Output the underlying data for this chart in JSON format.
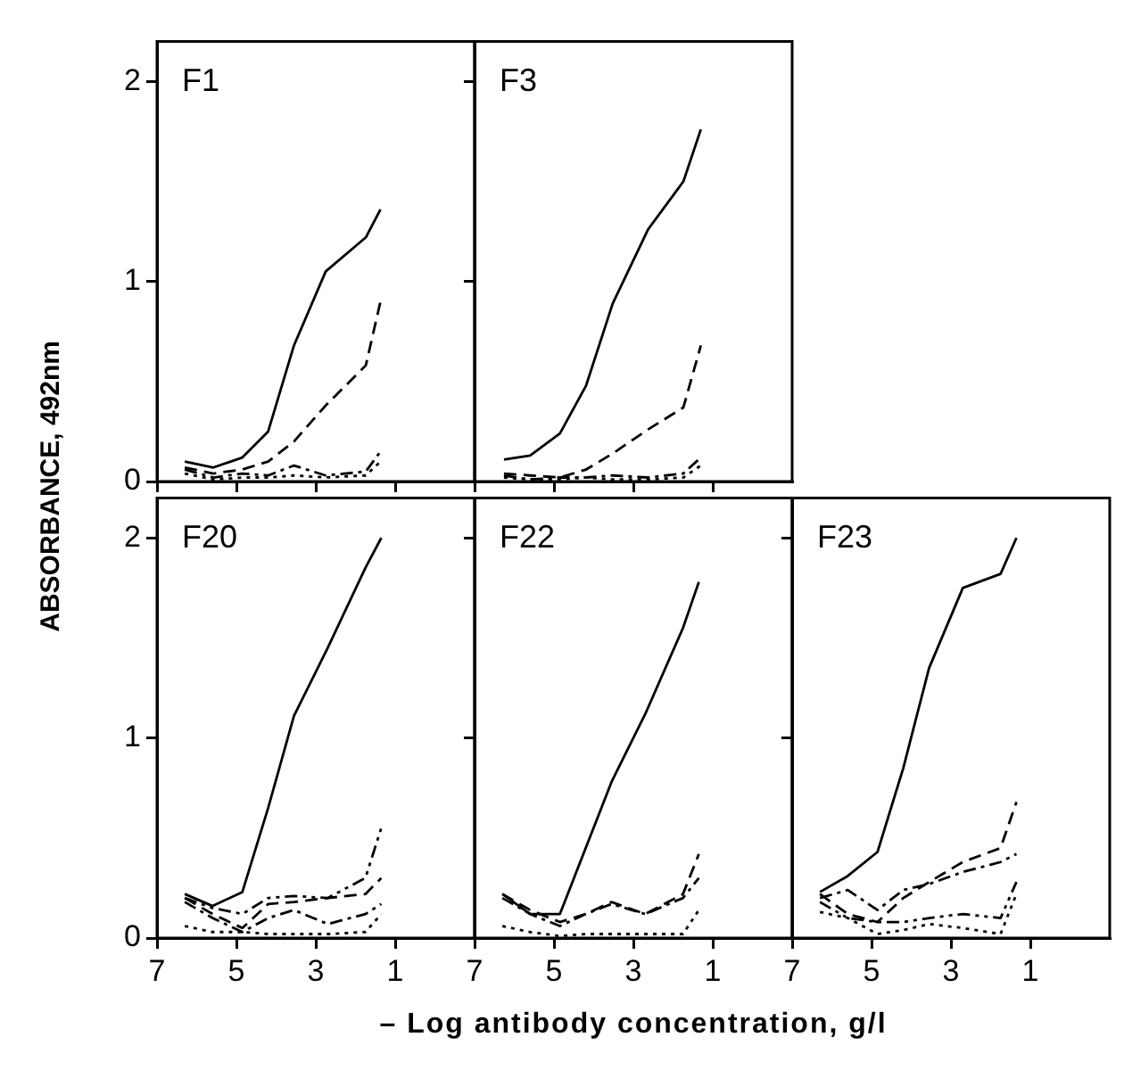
{
  "chart_data": [
    {
      "type": "line",
      "title": "F1",
      "ylabel": "ABSORBANCE, 492nm",
      "xlim": [
        7,
        -1
      ],
      "ylim": [
        0,
        2.2
      ],
      "xticks": [
        {
          "value": 7,
          "label": null
        },
        {
          "value": 5,
          "label": null
        },
        {
          "value": 3,
          "label": null
        },
        {
          "value": 1,
          "label": null
        }
      ],
      "yticks": [
        0,
        1,
        2
      ],
      "tick_labels": "y",
      "marker": "none",
      "x": [
        6.3,
        5.58,
        4.85,
        4.2,
        3.55,
        2.75,
        1.74,
        1.37
      ],
      "series": [
        {
          "color": "#000000",
          "line_style": "solid",
          "values": [
            0.1,
            0.07,
            0.12,
            0.25,
            0.68,
            1.05,
            1.22,
            1.36
          ]
        },
        {
          "color": "#000000",
          "line_style": "dashed",
          "values": [
            0.07,
            0.04,
            0.06,
            0.1,
            0.2,
            0.38,
            0.58,
            0.9
          ]
        },
        {
          "color": "#000000",
          "line_style": "dashdot",
          "values": [
            0.06,
            0.02,
            0.04,
            0.03,
            0.08,
            0.03,
            0.05,
            0.15
          ]
        },
        {
          "color": "#000000",
          "line_style": "dotted",
          "values": [
            0.04,
            0.01,
            0.02,
            0.02,
            0.03,
            0.02,
            0.03,
            0.1
          ]
        }
      ]
    },
    {
      "type": "line",
      "title": "F3",
      "xlim": [
        7,
        -1
      ],
      "ylim": [
        0,
        2.2
      ],
      "xticks": [
        {
          "value": 7,
          "label": null
        },
        {
          "value": 5,
          "label": null
        },
        {
          "value": 3,
          "label": null
        },
        {
          "value": 1,
          "label": null
        }
      ],
      "yticks": [
        {
          "value": 0,
          "label": null
        },
        {
          "value": 1,
          "label": null
        },
        {
          "value": 2,
          "label": null
        }
      ],
      "tick_labels": false,
      "marker": "none",
      "x": [
        6.26,
        5.6,
        4.85,
        4.19,
        3.52,
        2.63,
        1.74,
        1.3
      ],
      "series": [
        {
          "color": "#000000",
          "line_style": "solid",
          "values": [
            0.11,
            0.13,
            0.24,
            0.48,
            0.89,
            1.26,
            1.5,
            1.76
          ]
        },
        {
          "color": "#000000",
          "line_style": "dashed",
          "values": [
            0.04,
            0.03,
            0.02,
            0.06,
            0.14,
            0.26,
            0.37,
            0.68
          ]
        },
        {
          "color": "#000000",
          "line_style": "dashdot",
          "values": [
            0.03,
            0.01,
            0.02,
            0.02,
            0.03,
            0.02,
            0.04,
            0.12
          ]
        },
        {
          "color": "#000000",
          "line_style": "dotted",
          "values": [
            0.02,
            0.01,
            0.01,
            0.02,
            0.01,
            0.01,
            0.02,
            0.08
          ]
        }
      ]
    },
    {
      "type": "line",
      "title": "F20",
      "xlim": [
        7,
        -1
      ],
      "ylim": [
        0,
        2.2
      ],
      "xticks": [
        7,
        5,
        3,
        1
      ],
      "yticks": [
        0,
        1,
        2
      ],
      "marker": "none",
      "x": [
        6.3,
        5.6,
        4.85,
        4.2,
        3.55,
        2.7,
        1.75,
        1.35
      ],
      "series": [
        {
          "color": "#000000",
          "line_style": "solid",
          "values": [
            0.22,
            0.16,
            0.23,
            0.65,
            1.11,
            1.45,
            1.85,
            2.0
          ]
        },
        {
          "color": "#000000",
          "line_style": "dashed",
          "values": [
            0.2,
            0.12,
            0.05,
            0.17,
            0.18,
            0.2,
            0.22,
            0.3
          ]
        },
        {
          "color": "#000000",
          "line_style": "dashdot",
          "values": [
            0.18,
            0.1,
            0.03,
            0.1,
            0.14,
            0.07,
            0.12,
            0.17
          ]
        },
        {
          "color": "#000000",
          "line_style": "dashdotdot",
          "values": [
            0.2,
            0.15,
            0.12,
            0.2,
            0.21,
            0.2,
            0.3,
            0.55
          ]
        },
        {
          "color": "#000000",
          "line_style": "dotted",
          "values": [
            0.06,
            0.03,
            0.03,
            0.02,
            0.02,
            0.02,
            0.03,
            0.12
          ]
        }
      ]
    },
    {
      "type": "line",
      "title": "F22",
      "xlabel": "– Log antibody concentration, g/l",
      "xlim": [
        7,
        -1
      ],
      "ylim": [
        0,
        2.2
      ],
      "xticks": [
        7,
        5,
        3,
        1
      ],
      "yticks": [
        {
          "value": 0,
          "label": null
        },
        {
          "value": 1,
          "label": null
        },
        {
          "value": 2,
          "label": null
        }
      ],
      "tick_labels": "x",
      "marker": "none",
      "x": [
        6.3,
        5.6,
        4.85,
        4.2,
        3.55,
        2.7,
        1.75,
        1.35
      ],
      "series": [
        {
          "color": "#000000",
          "line_style": "solid",
          "values": [
            0.22,
            0.12,
            0.12,
            0.45,
            0.78,
            1.12,
            1.55,
            1.78
          ]
        },
        {
          "color": "#000000",
          "line_style": "dashed",
          "values": [
            0.22,
            0.14,
            0.08,
            0.12,
            0.18,
            0.12,
            0.22,
            0.42
          ]
        },
        {
          "color": "#000000",
          "line_style": "dashdot",
          "values": [
            0.2,
            0.12,
            0.06,
            0.12,
            0.17,
            0.12,
            0.2,
            0.3
          ]
        },
        {
          "color": "#000000",
          "line_style": "dotted",
          "values": [
            0.06,
            0.03,
            0.01,
            0.02,
            0.02,
            0.02,
            0.02,
            0.14
          ]
        }
      ]
    },
    {
      "type": "line",
      "title": "F23",
      "xlim": [
        7,
        -1
      ],
      "ylim": [
        0,
        2.2
      ],
      "xticks": [
        7,
        5,
        3,
        1
      ],
      "yticks": [
        {
          "value": 0,
          "label": null
        },
        {
          "value": 1,
          "label": null
        },
        {
          "value": 2,
          "label": null
        }
      ],
      "tick_labels": "x",
      "marker": "none",
      "x": [
        6.3,
        5.6,
        4.85,
        4.2,
        3.55,
        2.7,
        1.75,
        1.35
      ],
      "series": [
        {
          "color": "#000000",
          "line_style": "solid",
          "values": [
            0.23,
            0.31,
            0.43,
            0.85,
            1.35,
            1.75,
            1.82,
            2.0
          ]
        },
        {
          "color": "#000000",
          "line_style": "dashed",
          "values": [
            0.22,
            0.12,
            0.08,
            0.2,
            0.28,
            0.38,
            0.45,
            0.68
          ]
        },
        {
          "color": "#000000",
          "line_style": "dashdot",
          "values": [
            0.2,
            0.24,
            0.14,
            0.24,
            0.27,
            0.33,
            0.38,
            0.42
          ]
        },
        {
          "color": "#000000",
          "line_style": "dashdotdot",
          "values": [
            0.18,
            0.1,
            0.08,
            0.08,
            0.1,
            0.12,
            0.1,
            0.28
          ]
        },
        {
          "color": "#000000",
          "line_style": "dotted",
          "values": [
            0.13,
            0.1,
            0.02,
            0.04,
            0.07,
            0.05,
            0.02,
            0.22
          ]
        }
      ]
    }
  ]
}
